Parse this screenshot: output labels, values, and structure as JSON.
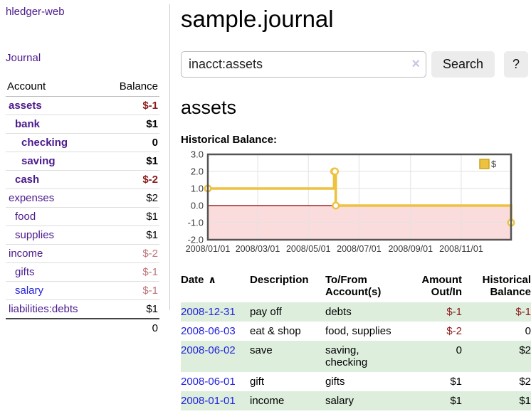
{
  "app": {
    "title": "hledger-web"
  },
  "nav": {
    "journal_label": "Journal"
  },
  "sidebar": {
    "header": {
      "account": "Account",
      "balance": "Balance"
    },
    "accounts": [
      {
        "name": "assets",
        "balance": "$-1",
        "level": 1,
        "bold": true,
        "link_color": "purple"
      },
      {
        "name": "bank",
        "balance": "$1",
        "level": 2,
        "bold": true,
        "link_color": "purple"
      },
      {
        "name": "checking",
        "balance": "0",
        "level": 3,
        "bold": true,
        "link_color": "purple"
      },
      {
        "name": "saving",
        "balance": "$1",
        "level": 3,
        "bold": true,
        "link_color": "purple"
      },
      {
        "name": "cash",
        "balance": "$-2",
        "level": 2,
        "bold": true,
        "link_color": "purple"
      },
      {
        "name": "expenses",
        "balance": "$2",
        "level": 1,
        "bold": false,
        "link_color": "purple"
      },
      {
        "name": "food",
        "balance": "$1",
        "level": 2,
        "bold": false,
        "link_color": "purple"
      },
      {
        "name": "supplies",
        "balance": "$1",
        "level": 2,
        "bold": false,
        "link_color": "purple"
      },
      {
        "name": "income",
        "balance": "$-2",
        "level": 1,
        "bold": false,
        "link_color": "purple"
      },
      {
        "name": "gifts",
        "balance": "$-1",
        "level": 2,
        "bold": false,
        "link_color": "purple"
      },
      {
        "name": "salary",
        "balance": "$-1",
        "level": 2,
        "bold": false,
        "link_color": "blue"
      },
      {
        "name": "liabilities:debts",
        "balance": "$1",
        "level": 1,
        "bold": false,
        "link_color": "purple"
      }
    ],
    "total": "0"
  },
  "header": {
    "title": "sample.journal"
  },
  "search": {
    "value": "inacct:assets",
    "clear_icon": "×",
    "button_label": "Search",
    "help_label": "?"
  },
  "page": {
    "account_heading": "assets",
    "chart_label": "Historical Balance:"
  },
  "chart_data": {
    "type": "line",
    "title": "Historical Balance:",
    "steps": true,
    "series": [
      {
        "name": "$",
        "color": "#edc240",
        "points": [
          [
            "2008-01-01",
            1
          ],
          [
            "2008-06-01",
            2
          ],
          [
            "2008-06-02",
            2
          ],
          [
            "2008-06-03",
            0
          ],
          [
            "2008-12-31",
            -1
          ]
        ]
      }
    ],
    "xlim": [
      "2008-01-01",
      "2008-12-31"
    ],
    "ylim": [
      -2,
      3
    ],
    "x_ticks": [
      "2008/01/01",
      "2008/03/01",
      "2008/05/01",
      "2008/07/01",
      "2008/09/01",
      "2008/11/01"
    ],
    "y_ticks": [
      "3.0",
      "2.0",
      "1.0",
      "0.0",
      "-1.0",
      "-2.0"
    ],
    "grid": true,
    "legend": {
      "label": "$",
      "position": "top-right"
    },
    "negative_region_fill": "#fbdcdc",
    "zero_line_color": "#8b0000"
  },
  "register": {
    "columns": [
      {
        "label": "Date",
        "sorted": "asc"
      },
      {
        "label": "Description"
      },
      {
        "label": "To/From Account(s)"
      },
      {
        "label": "Amount Out/In"
      },
      {
        "label": "Historical Balance"
      }
    ],
    "sort_icon": "∧",
    "rows": [
      {
        "date": "2008-12-31",
        "description": "pay off",
        "accounts": "debts",
        "amount": "$-1",
        "balance": "$-1"
      },
      {
        "date": "2008-06-03",
        "description": "eat & shop",
        "accounts": "food, supplies",
        "amount": "$-2",
        "balance": "0"
      },
      {
        "date": "2008-06-02",
        "description": "save",
        "accounts": "saving, checking",
        "amount": "0",
        "balance": "$2"
      },
      {
        "date": "2008-06-01",
        "description": "gift",
        "accounts": "gifts",
        "amount": "$1",
        "balance": "$2"
      },
      {
        "date": "2008-01-01",
        "description": "income",
        "accounts": "salary",
        "amount": "$1",
        "balance": "$1"
      }
    ]
  },
  "colors": {
    "link_purple": "#4b1a8c",
    "link_blue": "#2222dd",
    "negative_dark": "#8b1a1a",
    "negative_faded": "#bd7478",
    "row_green": "#ddeedd",
    "series_gold": "#edc240",
    "region_pink": "#fbdcdc",
    "zero_line": "#8b0000"
  }
}
